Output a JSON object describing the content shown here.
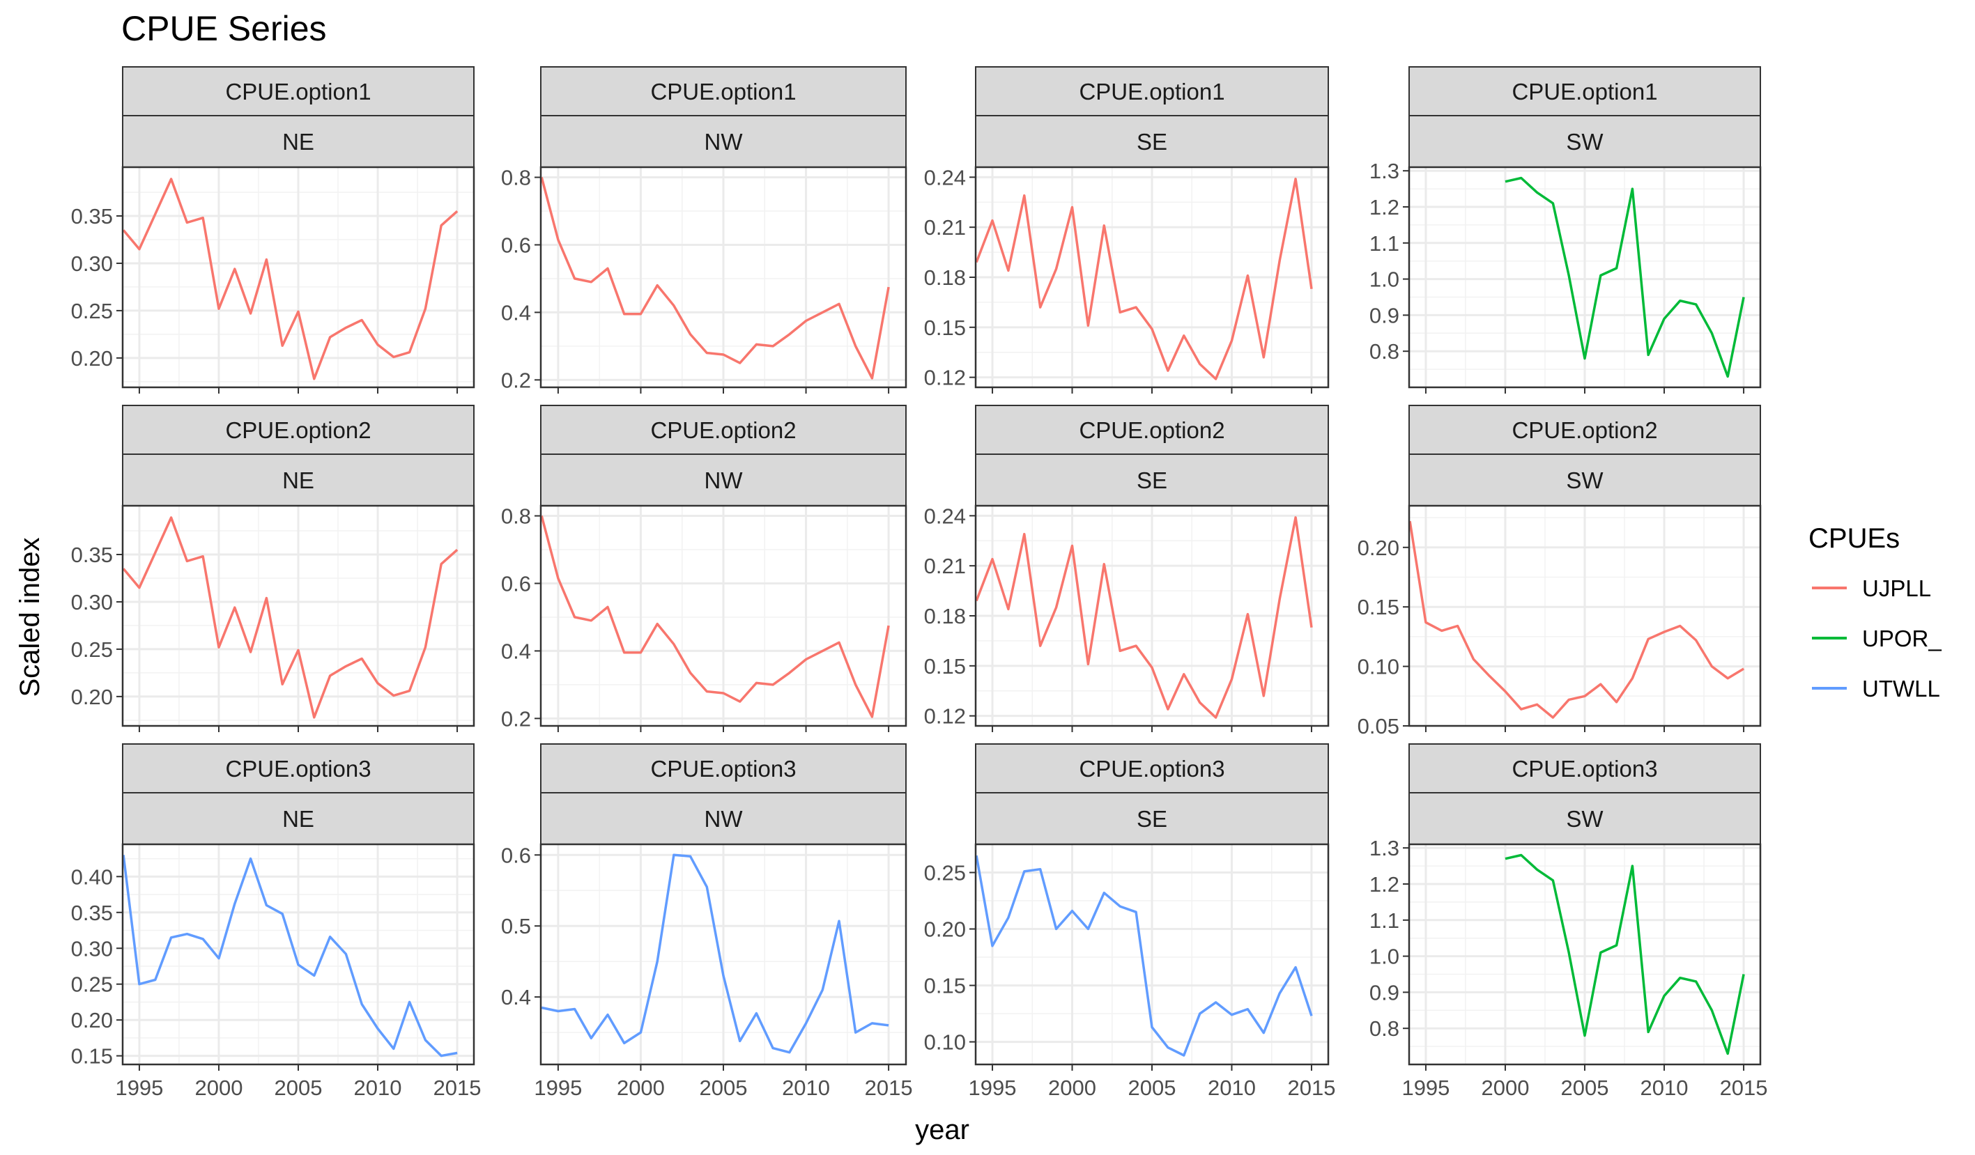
{
  "chart_data": {
    "type": "line",
    "title": "CPUE Series",
    "xlabel": "year",
    "ylabel": "Scaled index",
    "legend": {
      "title": "CPUEs",
      "position": "right",
      "entries": [
        {
          "name": "UJPLL",
          "color": "#F8766D"
        },
        {
          "name": "UPOR_",
          "color": "#00BA38"
        },
        {
          "name": "UTWLL",
          "color": "#619CFF"
        }
      ]
    },
    "grid": true,
    "xlim": [
      1993.95,
      2016.05
    ],
    "x_ticks": [
      1995,
      2000,
      2005,
      2010,
      2015
    ],
    "x_tick_labels": [
      "1995",
      "2000",
      "2005",
      "2010",
      "2015"
    ],
    "panels": [
      {
        "option": "CPUE.option1",
        "region": "NE",
        "series": "UJPLL",
        "color": "#F8766D",
        "ylim": [
          0.169,
          0.4015
        ],
        "y_ticks": [
          0.2,
          0.25,
          0.3,
          0.35
        ],
        "y_tick_labels": [
          "0.20",
          "0.25",
          "0.30",
          "0.35"
        ],
        "x": [
          1994,
          1995,
          1996,
          1997,
          1998,
          1999,
          2000,
          2001,
          2002,
          2003,
          2004,
          2005,
          2006,
          2007,
          2008,
          2009,
          2010,
          2011,
          2012,
          2013,
          2014,
          2015
        ],
        "y": [
          0.335,
          0.315,
          0.352,
          0.389,
          0.343,
          0.348,
          0.252,
          0.294,
          0.247,
          0.304,
          0.213,
          0.249,
          0.178,
          0.222,
          0.232,
          0.24,
          0.214,
          0.201,
          0.206,
          0.252,
          0.34,
          0.355
        ]
      },
      {
        "option": "CPUE.option1",
        "region": "NW",
        "series": "UJPLL",
        "color": "#F8766D",
        "ylim": [
          0.178,
          0.83
        ],
        "y_ticks": [
          0.2,
          0.4,
          0.6,
          0.8
        ],
        "y_tick_labels": [
          "0.2",
          "0.4",
          "0.6",
          "0.8"
        ],
        "x": [
          1994,
          1995,
          1996,
          1997,
          1998,
          1999,
          2000,
          2001,
          2002,
          2003,
          2004,
          2005,
          2006,
          2007,
          2008,
          2009,
          2010,
          2011,
          2012,
          2013,
          2014,
          2015
        ],
        "y": [
          0.8,
          0.615,
          0.5,
          0.49,
          0.53,
          0.395,
          0.395,
          0.48,
          0.42,
          0.335,
          0.28,
          0.275,
          0.25,
          0.305,
          0.3,
          0.335,
          0.375,
          0.4,
          0.425,
          0.3,
          0.205,
          0.475
        ]
      },
      {
        "option": "CPUE.option1",
        "region": "SE",
        "series": "UJPLL",
        "color": "#F8766D",
        "ylim": [
          0.114,
          0.246
        ],
        "y_ticks": [
          0.12,
          0.15,
          0.18,
          0.21,
          0.24
        ],
        "y_tick_labels": [
          "0.12",
          "0.15",
          "0.18",
          "0.21",
          "0.24"
        ],
        "x": [
          1994,
          1995,
          1996,
          1997,
          1998,
          1999,
          2000,
          2001,
          2002,
          2003,
          2004,
          2005,
          2006,
          2007,
          2008,
          2009,
          2010,
          2011,
          2012,
          2013,
          2014,
          2015
        ],
        "y": [
          0.189,
          0.214,
          0.184,
          0.229,
          0.162,
          0.185,
          0.222,
          0.151,
          0.211,
          0.159,
          0.162,
          0.149,
          0.124,
          0.145,
          0.128,
          0.119,
          0.142,
          0.181,
          0.132,
          0.19,
          0.239,
          0.173
        ]
      },
      {
        "option": "CPUE.option1",
        "region": "SW",
        "series": "UPOR_",
        "color": "#00BA38",
        "ylim": [
          0.7,
          1.31
        ],
        "y_ticks": [
          0.8,
          0.9,
          1.0,
          1.1,
          1.2,
          1.3
        ],
        "y_tick_labels": [
          "0.8",
          "0.9",
          "1.0",
          "1.1",
          "1.2",
          "1.3"
        ],
        "x": [
          2000,
          2001,
          2002,
          2003,
          2004,
          2005,
          2006,
          2007,
          2008,
          2009,
          2010,
          2011,
          2012,
          2013,
          2014,
          2015
        ],
        "y": [
          1.27,
          1.28,
          1.24,
          1.21,
          1.01,
          0.78,
          1.01,
          1.03,
          1.25,
          0.79,
          0.89,
          0.94,
          0.93,
          0.85,
          0.73,
          0.95
        ]
      },
      {
        "option": "CPUE.option2",
        "region": "NE",
        "series": "UJPLL",
        "color": "#F8766D",
        "ylim": [
          0.169,
          0.4015
        ],
        "y_ticks": [
          0.2,
          0.25,
          0.3,
          0.35
        ],
        "y_tick_labels": [
          "0.20",
          "0.25",
          "0.30",
          "0.35"
        ],
        "x": [
          1994,
          1995,
          1996,
          1997,
          1998,
          1999,
          2000,
          2001,
          2002,
          2003,
          2004,
          2005,
          2006,
          2007,
          2008,
          2009,
          2010,
          2011,
          2012,
          2013,
          2014,
          2015
        ],
        "y": [
          0.335,
          0.315,
          0.352,
          0.389,
          0.343,
          0.348,
          0.252,
          0.294,
          0.247,
          0.304,
          0.213,
          0.249,
          0.178,
          0.222,
          0.232,
          0.24,
          0.214,
          0.201,
          0.206,
          0.252,
          0.34,
          0.355
        ]
      },
      {
        "option": "CPUE.option2",
        "region": "NW",
        "series": "UJPLL",
        "color": "#F8766D",
        "ylim": [
          0.178,
          0.83
        ],
        "y_ticks": [
          0.2,
          0.4,
          0.6,
          0.8
        ],
        "y_tick_labels": [
          "0.2",
          "0.4",
          "0.6",
          "0.8"
        ],
        "x": [
          1994,
          1995,
          1996,
          1997,
          1998,
          1999,
          2000,
          2001,
          2002,
          2003,
          2004,
          2005,
          2006,
          2007,
          2008,
          2009,
          2010,
          2011,
          2012,
          2013,
          2014,
          2015
        ],
        "y": [
          0.8,
          0.615,
          0.5,
          0.49,
          0.53,
          0.395,
          0.395,
          0.48,
          0.42,
          0.335,
          0.28,
          0.275,
          0.25,
          0.305,
          0.3,
          0.335,
          0.375,
          0.4,
          0.425,
          0.3,
          0.205,
          0.475
        ]
      },
      {
        "option": "CPUE.option2",
        "region": "SE",
        "series": "UJPLL",
        "color": "#F8766D",
        "ylim": [
          0.114,
          0.246
        ],
        "y_ticks": [
          0.12,
          0.15,
          0.18,
          0.21,
          0.24
        ],
        "y_tick_labels": [
          "0.12",
          "0.15",
          "0.18",
          "0.21",
          "0.24"
        ],
        "x": [
          1994,
          1995,
          1996,
          1997,
          1998,
          1999,
          2000,
          2001,
          2002,
          2003,
          2004,
          2005,
          2006,
          2007,
          2008,
          2009,
          2010,
          2011,
          2012,
          2013,
          2014,
          2015
        ],
        "y": [
          0.189,
          0.214,
          0.184,
          0.229,
          0.162,
          0.185,
          0.222,
          0.151,
          0.211,
          0.159,
          0.162,
          0.149,
          0.124,
          0.145,
          0.128,
          0.119,
          0.142,
          0.181,
          0.132,
          0.19,
          0.239,
          0.173
        ]
      },
      {
        "option": "CPUE.option2",
        "region": "SW",
        "series": "UJPLL",
        "color": "#F8766D",
        "ylim": [
          0.05,
          0.235
        ],
        "y_ticks": [
          0.05,
          0.1,
          0.15,
          0.2
        ],
        "y_tick_labels": [
          "0.05",
          "0.10",
          "0.15",
          "0.20"
        ],
        "x": [
          1994,
          1995,
          1996,
          1997,
          1998,
          1999,
          2000,
          2001,
          2002,
          2003,
          2004,
          2005,
          2006,
          2007,
          2008,
          2009,
          2010,
          2011,
          2012,
          2013,
          2014,
          2015
        ],
        "y": [
          0.222,
          0.137,
          0.13,
          0.134,
          0.106,
          0.092,
          0.079,
          0.064,
          0.068,
          0.057,
          0.072,
          0.075,
          0.085,
          0.07,
          0.09,
          0.123,
          0.129,
          0.134,
          0.122,
          0.1,
          0.09,
          0.098
        ]
      },
      {
        "option": "CPUE.option3",
        "region": "NE",
        "series": "UTWLL",
        "color": "#619CFF",
        "ylim": [
          0.138,
          0.445
        ],
        "y_ticks": [
          0.15,
          0.2,
          0.25,
          0.3,
          0.35,
          0.4
        ],
        "y_tick_labels": [
          "0.15",
          "0.20",
          "0.25",
          "0.30",
          "0.35",
          "0.40"
        ],
        "x": [
          1994,
          1995,
          1996,
          1997,
          1998,
          1999,
          2000,
          2001,
          2002,
          2003,
          2004,
          2005,
          2006,
          2007,
          2008,
          2009,
          2010,
          2011,
          2012,
          2013,
          2014,
          2015
        ],
        "y": [
          0.43,
          0.25,
          0.256,
          0.315,
          0.32,
          0.313,
          0.286,
          0.362,
          0.425,
          0.36,
          0.348,
          0.277,
          0.262,
          0.316,
          0.292,
          0.222,
          0.188,
          0.16,
          0.225,
          0.172,
          0.15,
          0.154
        ]
      },
      {
        "option": "CPUE.option3",
        "region": "NW",
        "series": "UTWLL",
        "color": "#619CFF",
        "ylim": [
          0.305,
          0.615
        ],
        "y_ticks": [
          0.4,
          0.5,
          0.6
        ],
        "y_tick_labels": [
          "0.4",
          "0.5",
          "0.6"
        ],
        "x": [
          1994,
          1995,
          1996,
          1997,
          1998,
          1999,
          2000,
          2001,
          2002,
          2003,
          2004,
          2005,
          2006,
          2007,
          2008,
          2009,
          2010,
          2011,
          2012,
          2013,
          2014,
          2015
        ],
        "y": [
          0.385,
          0.38,
          0.383,
          0.342,
          0.375,
          0.335,
          0.35,
          0.45,
          0.6,
          0.598,
          0.555,
          0.43,
          0.338,
          0.377,
          0.328,
          0.322,
          0.363,
          0.41,
          0.507,
          0.35,
          0.363,
          0.36
        ]
      },
      {
        "option": "CPUE.option3",
        "region": "SE",
        "series": "UTWLL",
        "color": "#619CFF",
        "ylim": [
          0.08,
          0.275
        ],
        "y_ticks": [
          0.1,
          0.15,
          0.2,
          0.25
        ],
        "y_tick_labels": [
          "0.10",
          "0.15",
          "0.20",
          "0.25"
        ],
        "x": [
          1994,
          1995,
          1996,
          1997,
          1998,
          1999,
          2000,
          2001,
          2002,
          2003,
          2004,
          2005,
          2006,
          2007,
          2008,
          2009,
          2010,
          2011,
          2012,
          2013,
          2014,
          2015
        ],
        "y": [
          0.265,
          0.185,
          0.21,
          0.251,
          0.253,
          0.2,
          0.216,
          0.2,
          0.232,
          0.22,
          0.215,
          0.113,
          0.095,
          0.088,
          0.125,
          0.135,
          0.124,
          0.129,
          0.108,
          0.143,
          0.166,
          0.123
        ]
      },
      {
        "option": "CPUE.option3",
        "region": "SW",
        "series": "UPOR_",
        "color": "#00BA38",
        "ylim": [
          0.7,
          1.31
        ],
        "y_ticks": [
          0.8,
          0.9,
          1.0,
          1.1,
          1.2,
          1.3
        ],
        "y_tick_labels": [
          "0.8",
          "0.9",
          "1.0",
          "1.1",
          "1.2",
          "1.3"
        ],
        "x": [
          2000,
          2001,
          2002,
          2003,
          2004,
          2005,
          2006,
          2007,
          2008,
          2009,
          2010,
          2011,
          2012,
          2013,
          2014,
          2015
        ],
        "y": [
          1.27,
          1.28,
          1.24,
          1.21,
          1.01,
          0.78,
          1.01,
          1.03,
          1.25,
          0.79,
          0.89,
          0.94,
          0.93,
          0.85,
          0.73,
          0.95
        ]
      }
    ]
  }
}
